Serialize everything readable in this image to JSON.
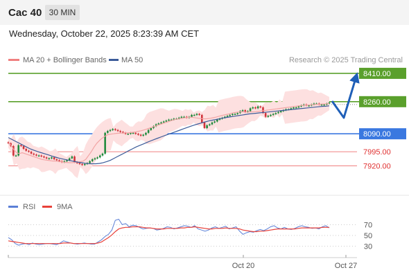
{
  "header": {
    "symbol": "Cac 40",
    "timeframe": "30 MIN"
  },
  "datetime": "Wednesday, October 22, 2025 8:23:39 AM CET",
  "credit": "Research © 2025 Trading Central",
  "colors": {
    "resistance": "#5aa02c",
    "pivot": "#3a78e0",
    "support": "#f08080",
    "ma20": "#f2a5a5",
    "ma50": "#3b5b99",
    "band_fill": "#fde0e0",
    "arrow": "#1f5fb8",
    "rsi": "#5b7fd6",
    "rsi_ma": "#e8413a",
    "candle_up": "#1f8a3c",
    "candle_down": "#d0333a"
  },
  "chart_data": [
    {
      "type": "line",
      "title": "",
      "legend": [
        "MA 20 + Bollinger Bands",
        "MA 50"
      ],
      "price_levels": [
        {
          "value": "8410.00",
          "kind": "resistance"
        },
        {
          "value": "8260.00",
          "kind": "resistance"
        },
        {
          "value": "8090.00",
          "kind": "pivot"
        },
        {
          "value": "7995.00",
          "kind": "support"
        },
        {
          "value": "7920.00",
          "kind": "support"
        }
      ],
      "x_labels": [
        "Oct 20",
        "Oct 27"
      ],
      "ylim": [
        7790,
        8450
      ],
      "close": [
        8040,
        8025,
        7975,
        7975,
        8030,
        8025,
        8010,
        8000,
        7995,
        7985,
        7980,
        7975,
        7975,
        7970,
        7965,
        7960,
        7960,
        7965,
        7955,
        7950,
        7945,
        7940,
        7945,
        7950,
        7960,
        7970,
        7940,
        7935,
        7930,
        7925,
        7930,
        7935,
        7945,
        7955,
        7960,
        7965,
        7975,
        7985,
        8095,
        8105,
        8110,
        8115,
        8110,
        8105,
        8100,
        8095,
        8090,
        8090,
        8095,
        8095,
        8090,
        8085,
        8080,
        8085,
        8095,
        8110,
        8120,
        8130,
        8140,
        8145,
        8150,
        8155,
        8160,
        8165,
        8165,
        8170,
        8170,
        8175,
        8180,
        8180,
        8175,
        8180,
        8190,
        8190,
        8195,
        8190,
        8150,
        8120,
        8135,
        8140,
        8150,
        8155,
        8165,
        8170,
        8175,
        8180,
        8185,
        8190,
        8195,
        8195,
        8200,
        8210,
        8215,
        8205,
        8210,
        8225,
        8230,
        8225,
        8235,
        8230,
        8200,
        8180,
        8185,
        8190,
        8195,
        8200,
        8205,
        8210,
        8215,
        8220,
        8220,
        8225,
        8230,
        8230,
        8235,
        8240,
        8245,
        8240,
        8240,
        8245,
        8250,
        8250,
        8245,
        8245,
        8245,
        8250,
        8255
      ],
      "ma20": [
        8040,
        8030,
        8005,
        7990,
        7985,
        7990,
        7985,
        7980,
        7975,
        7970,
        7965,
        7960,
        7955,
        7952,
        7950,
        7948,
        7946,
        7945,
        7944,
        7942,
        7940,
        7938,
        7937,
        7937,
        7938,
        7940,
        7942,
        7945,
        7955,
        7975,
        7995,
        8020,
        8040,
        8055,
        8068,
        8078,
        8085,
        8088,
        8090,
        8092,
        8093,
        8094,
        8095,
        8095,
        8096,
        8098,
        8100,
        8103,
        8106,
        8110,
        8115,
        8120,
        8125,
        8130,
        8135,
        8140,
        8145,
        8150,
        8155,
        8160,
        8165,
        8168,
        8170,
        8172,
        8175,
        8177,
        8178,
        8176,
        8174,
        8172,
        8170,
        8169,
        8170,
        8172,
        8175,
        8178,
        8182,
        8186,
        8190,
        8193,
        8196,
        8200,
        8203,
        8205,
        8206,
        8206,
        8205,
        8205,
        8206,
        8207,
        8208,
        8210,
        8212,
        8214,
        8216,
        8218,
        8220,
        8222,
        8224,
        8226,
        8228,
        8230,
        8232,
        8234,
        8236,
        8238,
        8240,
        8241,
        8242,
        8243,
        8244,
        8245,
        8246,
        8247,
        8248,
        8249,
        8250
      ],
      "ma50": [
        8070,
        8060,
        8050,
        8040,
        8030,
        8020,
        8010,
        8003,
        7996,
        7990,
        7984,
        7978,
        7972,
        7966,
        7960,
        7956,
        7952,
        7948,
        7944,
        7940,
        7937,
        7934,
        7932,
        7931,
        7931,
        7933,
        7937,
        7943,
        7950,
        7960,
        7970,
        7980,
        7990,
        8000,
        8010,
        8020,
        8028,
        8036,
        8044,
        8052,
        8060,
        8067,
        8074,
        8081,
        8088,
        8095,
        8102,
        8109,
        8116,
        8123,
        8130,
        8136,
        8142,
        8148,
        8153,
        8158,
        8162,
        8166,
        8170,
        8174,
        8177,
        8180,
        8183,
        8186,
        8189,
        8192,
        8195,
        8197,
        8199,
        8201,
        8203,
        8205,
        8207,
        8209,
        8211,
        8213,
        8215,
        8217,
        8219,
        8221,
        8223,
        8225,
        8227,
        8229,
        8231,
        8233,
        8235,
        8236,
        8238
      ]
    },
    {
      "type": "line",
      "title": "",
      "legend": [
        "RSI",
        "9MA"
      ],
      "yticks": [
        "70",
        "50",
        "30"
      ],
      "ylim": [
        18,
        82
      ],
      "rsi": [
        46,
        42,
        35,
        32,
        34,
        35,
        33,
        36,
        34,
        33,
        34,
        35,
        35,
        34,
        33,
        36,
        40,
        38,
        36,
        35,
        34,
        35,
        36,
        35,
        34,
        34,
        38,
        42,
        48,
        52,
        60,
        78,
        80,
        70,
        72,
        66,
        69,
        68,
        65,
        62,
        63,
        64,
        63,
        60,
        61,
        63,
        66,
        65,
        62,
        64,
        66,
        68,
        67,
        65,
        68,
        62,
        60,
        58,
        60,
        64,
        66,
        63,
        65,
        67,
        62,
        64,
        66,
        58,
        52,
        55,
        57,
        56,
        59,
        61,
        59,
        62,
        66,
        68,
        64,
        62,
        65,
        62,
        61,
        63,
        66,
        68,
        66,
        65,
        63,
        64,
        62,
        66,
        68,
        64
      ],
      "rsi_ma": [
        40,
        39,
        38,
        37,
        36,
        35,
        35,
        35,
        35,
        35,
        35,
        35,
        35,
        35,
        35,
        35,
        36,
        36,
        36,
        35,
        35,
        35,
        35,
        35,
        35,
        35,
        36,
        38,
        42,
        46,
        51,
        57,
        62,
        64,
        65,
        65,
        66,
        66,
        66,
        65,
        64,
        64,
        63,
        62,
        62,
        62,
        63,
        63,
        63,
        63,
        64,
        64,
        65,
        65,
        66,
        65,
        64,
        63,
        62,
        62,
        63,
        63,
        63,
        64,
        63,
        63,
        63,
        62,
        60,
        59,
        58,
        57,
        57,
        58,
        58,
        59,
        60,
        61,
        62,
        62,
        62,
        62,
        62,
        62,
        63,
        64,
        64,
        64,
        64,
        64,
        64,
        65,
        65,
        65
      ]
    }
  ]
}
